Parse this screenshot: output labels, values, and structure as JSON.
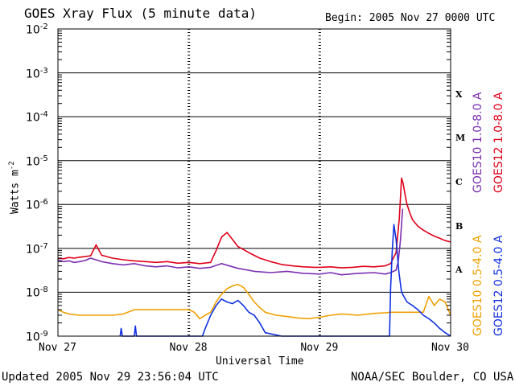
{
  "header": {
    "title": "GOES Xray Flux (5 minute data)",
    "begin": "Begin:  2005 Nov 27 0000 UTC"
  },
  "footer": {
    "updated": "Updated 2005 Nov 29 23:56:04 UTC",
    "credit": "NOAA/SEC Boulder, CO USA"
  },
  "chart_data": {
    "type": "line",
    "title": "GOES Xray Flux (5 minute data)",
    "xlabel": "Universal Time",
    "ylabel": "Watts m-2",
    "ylabel_main": "Watts m",
    "ylabel_sup": "-2",
    "yscale": "log",
    "ylim": [
      1e-09,
      0.01
    ],
    "xlim": [
      0,
      72
    ],
    "x_unit": "hours since 2005 Nov 27 0000 UTC",
    "x_ticks": [
      {
        "x": 0,
        "label": "Nov 27"
      },
      {
        "x": 24,
        "label": "Nov 28"
      },
      {
        "x": 48,
        "label": "Nov 29"
      },
      {
        "x": 72,
        "label": "Nov 30"
      }
    ],
    "y_ticks": [
      {
        "exp": -2,
        "label": "10",
        "sup": "-2"
      },
      {
        "exp": -3,
        "label": "10",
        "sup": "-3"
      },
      {
        "exp": -4,
        "label": "10",
        "sup": "-4"
      },
      {
        "exp": -5,
        "label": "10",
        "sup": "-5"
      },
      {
        "exp": -6,
        "label": "10",
        "sup": "-6"
      },
      {
        "exp": -7,
        "label": "10",
        "sup": "-7"
      },
      {
        "exp": -8,
        "label": "10",
        "sup": "-8"
      },
      {
        "exp": -9,
        "label": "10",
        "sup": "-9"
      }
    ],
    "flare_classes": [
      {
        "label": "X",
        "exp": -3.5
      },
      {
        "label": "M",
        "exp": -4.5
      },
      {
        "label": "C",
        "exp": -5.5
      },
      {
        "label": "B",
        "exp": -6.5
      },
      {
        "label": "A",
        "exp": -7.5
      }
    ],
    "grid": "horizontal at each decade, dashed verticals at day boundaries",
    "legend_placement": "right side, vertical",
    "series": [
      {
        "name": "GOES10 1.0-8.0 A",
        "color": "#7a2fb0",
        "x": [
          0,
          1,
          2,
          3,
          4,
          5,
          6,
          8,
          10,
          12,
          14,
          16,
          18,
          20,
          22,
          24,
          26,
          28,
          30,
          33,
          36,
          39,
          42,
          45,
          48,
          50,
          52,
          55,
          58,
          60,
          61,
          62,
          62.4,
          62.8,
          63.2
        ],
        "y": [
          5.5e-08,
          5e-08,
          5.2e-08,
          4.8e-08,
          5e-08,
          5.3e-08,
          6e-08,
          5e-08,
          4.5e-08,
          4.2e-08,
          4.5e-08,
          4e-08,
          3.8e-08,
          4e-08,
          3.6e-08,
          3.8e-08,
          3.5e-08,
          3.7e-08,
          4.5e-08,
          3.5e-08,
          3e-08,
          2.8e-08,
          3e-08,
          2.7e-08,
          2.6e-08,
          2.8e-08,
          2.5e-08,
          2.7e-08,
          2.8e-08,
          2.6e-08,
          2.8e-08,
          3.2e-08,
          5e-08,
          1.5e-07,
          8e-07
        ]
      },
      {
        "name": "GOES12 1.0-8.0 A",
        "color": "#e0001a",
        "x": [
          0,
          1,
          2,
          3,
          4,
          5,
          6,
          7,
          8,
          10,
          12,
          14,
          16,
          18,
          20,
          22,
          24,
          26,
          28,
          29,
          30,
          31,
          32,
          33,
          35,
          37,
          39,
          41,
          43,
          45,
          47,
          48,
          50,
          52,
          54,
          56,
          58,
          60,
          61,
          62,
          62.6,
          63,
          63.3,
          63.6,
          64,
          64.5,
          65,
          66,
          67,
          68,
          69,
          70,
          71,
          72
        ],
        "y": [
          6e-08,
          5.8e-08,
          6.2e-08,
          6e-08,
          6.3e-08,
          6.5e-08,
          6.8e-08,
          1.2e-07,
          7e-08,
          6e-08,
          5.5e-08,
          5.2e-08,
          5e-08,
          4.8e-08,
          5e-08,
          4.6e-08,
          4.8e-08,
          4.5e-08,
          4.8e-08,
          9e-08,
          1.8e-07,
          2.3e-07,
          1.6e-07,
          1.1e-07,
          8e-08,
          6e-08,
          5e-08,
          4.3e-08,
          4e-08,
          3.8e-08,
          3.7e-08,
          3.7e-08,
          3.8e-08,
          3.6e-08,
          3.7e-08,
          3.9e-08,
          3.8e-08,
          4e-08,
          4.5e-08,
          8e-08,
          5e-07,
          4e-06,
          3e-06,
          1.8e-06,
          1e-06,
          6.5e-07,
          4.5e-07,
          3.2e-07,
          2.6e-07,
          2.2e-07,
          1.9e-07,
          1.7e-07,
          1.5e-07,
          1.4e-07
        ]
      },
      {
        "name": "GOES10 0.5-4.0 A",
        "color": "#f0a000",
        "x": [
          0,
          1,
          2,
          4,
          6,
          8,
          10,
          12,
          14,
          16,
          18,
          20,
          22,
          24,
          25,
          26,
          27,
          28,
          29,
          30,
          31,
          32,
          33,
          34,
          35,
          36,
          37,
          38,
          40,
          42,
          44,
          46,
          48,
          50,
          52,
          55,
          58,
          60,
          61,
          62,
          63,
          64,
          65,
          66,
          67,
          68,
          69,
          70,
          71,
          72
        ],
        "y": [
          4e-09,
          3.5e-09,
          3.2e-09,
          3e-09,
          3e-09,
          3e-09,
          3e-09,
          3.2e-09,
          4e-09,
          4e-09,
          4e-09,
          4e-09,
          4e-09,
          4e-09,
          3.5e-09,
          2.5e-09,
          3e-09,
          3.5e-09,
          6e-09,
          9e-09,
          1.2e-08,
          1.4e-08,
          1.5e-08,
          1.3e-08,
          9e-09,
          6e-09,
          4.5e-09,
          3.5e-09,
          3e-09,
          2.8e-09,
          2.6e-09,
          2.5e-09,
          2.7e-09,
          3e-09,
          3.2e-09,
          3e-09,
          3.3e-09,
          3.4e-09,
          3.5e-09,
          3.5e-09,
          3.5e-09,
          3.5e-09,
          3.5e-09,
          3.5e-09,
          3.5e-09,
          8e-09,
          5e-09,
          7e-09,
          6e-09,
          3e-09
        ]
      },
      {
        "name": "GOES12 0.5-4.0 A",
        "color": "#1030e0",
        "x": [
          11.4,
          11.6,
          11.8,
          14,
          14.2,
          14.4,
          26.5,
          27,
          28,
          29,
          30,
          31,
          32,
          33,
          34,
          35,
          36,
          37,
          38,
          41,
          60.5,
          60.8,
          61,
          61.3,
          61.6,
          62,
          62.5,
          63,
          64,
          65,
          66,
          67,
          68,
          69,
          70,
          71,
          72
        ],
        "y": [
          1e-09,
          1.5e-09,
          1e-09,
          1e-09,
          1.7e-09,
          1e-09,
          1e-09,
          1.5e-09,
          3e-09,
          5e-09,
          7e-09,
          6e-09,
          5.5e-09,
          6.5e-09,
          5e-09,
          3.5e-09,
          3e-09,
          2e-09,
          1.2e-09,
          1e-09,
          1e-09,
          1e-09,
          1.2e-08,
          9e-08,
          3.5e-07,
          1.6e-07,
          3e-08,
          1e-08,
          6e-09,
          5e-09,
          4e-09,
          3e-09,
          2.5e-09,
          2e-09,
          1.5e-09,
          1.2e-09,
          1e-09
        ]
      }
    ]
  }
}
